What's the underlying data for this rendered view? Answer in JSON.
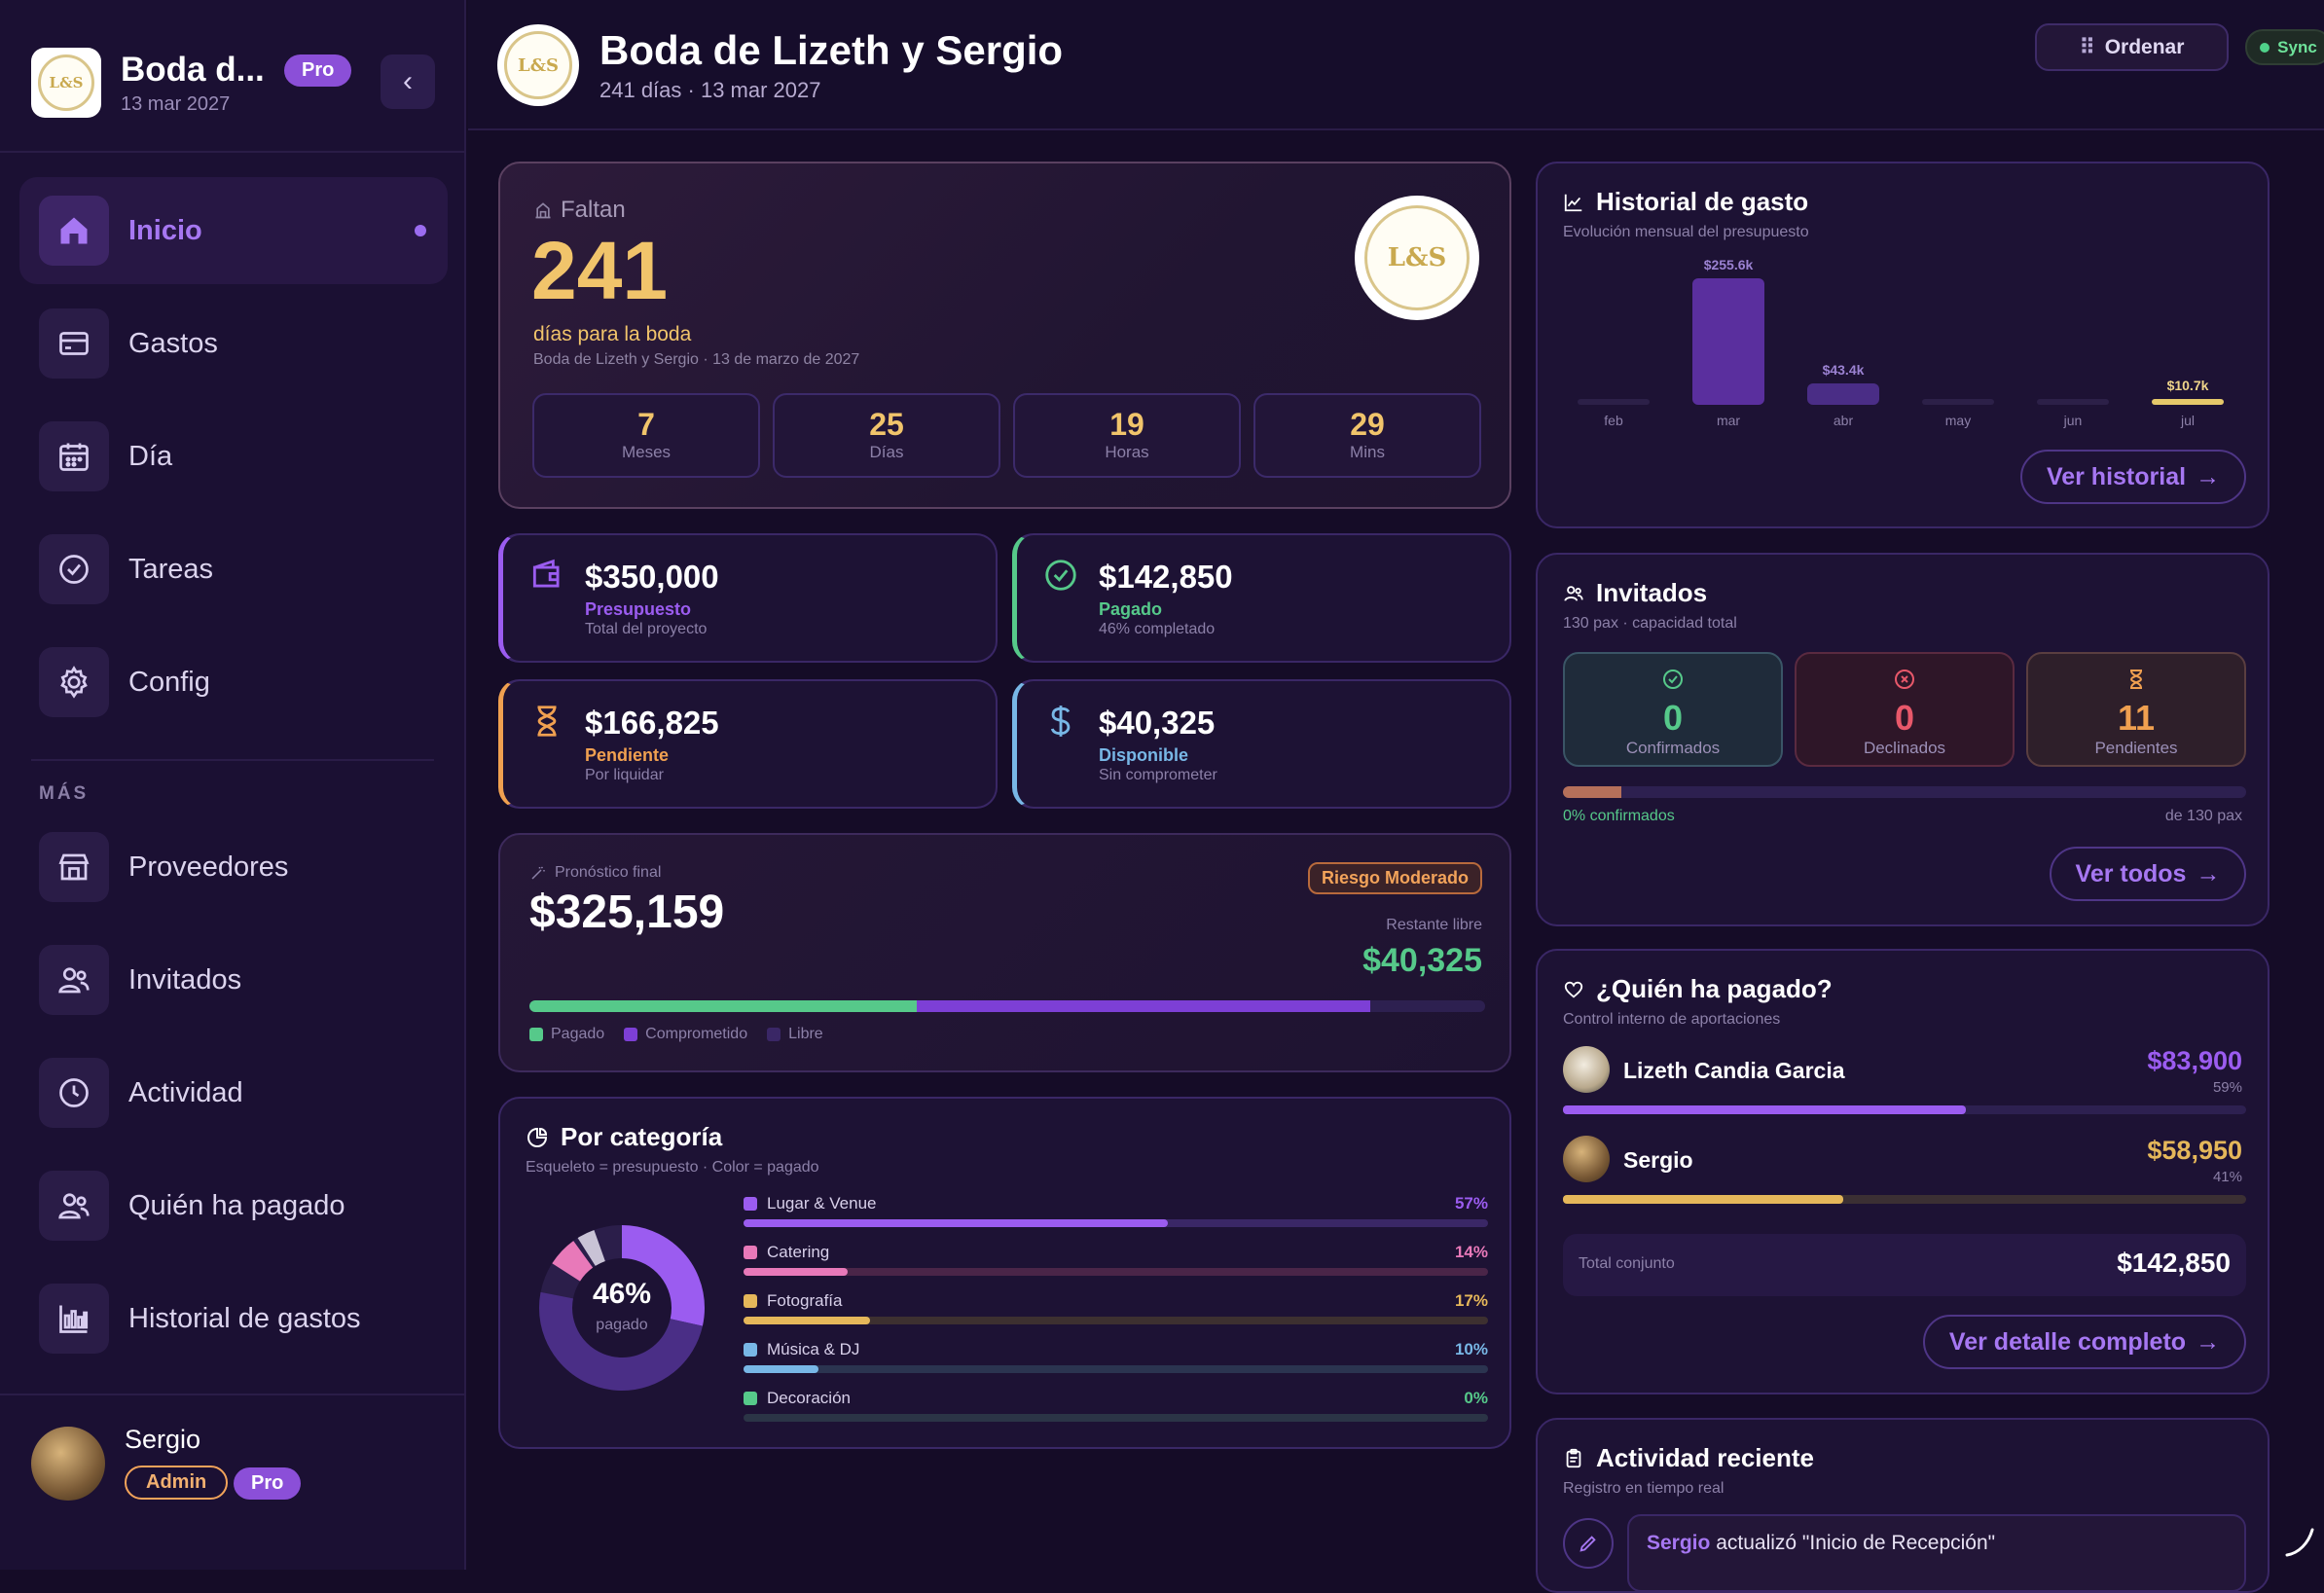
{
  "sidebar": {
    "title": "Boda d...",
    "badge": "Pro",
    "date": "13 mar 2027",
    "collapse_icon": "chevron-left-icon",
    "items": [
      {
        "label": "Inicio",
        "icon": "home-icon",
        "active": true
      },
      {
        "label": "Gastos",
        "icon": "credit-card-icon"
      },
      {
        "label": "Día",
        "icon": "calendar-icon"
      },
      {
        "label": "Tareas",
        "icon": "check-circle-icon"
      },
      {
        "label": "Config",
        "icon": "gear-icon"
      }
    ],
    "more_label": "MÁS",
    "more_items": [
      {
        "label": "Proveedores",
        "icon": "store-icon"
      },
      {
        "label": "Invitados",
        "icon": "users-icon"
      },
      {
        "label": "Actividad",
        "icon": "clock-icon"
      },
      {
        "label": "Quién ha pagado",
        "icon": "users-icon"
      },
      {
        "label": "Historial de gastos",
        "icon": "bar-chart-icon"
      }
    ],
    "user": {
      "name": "Sergio",
      "role": "Admin",
      "plan": "Pro"
    }
  },
  "header": {
    "title": "Boda de Lizeth y Sergio",
    "subtitle": "241 días · 13 mar 2027",
    "order_label": "Ordenar",
    "sync_label": "Sync"
  },
  "hero": {
    "faltan": "Faltan",
    "number": "241",
    "caption": "días para la boda",
    "desc": "Boda de Lizeth y Sergio · 13 de marzo de 2027",
    "seal_text": "L&S",
    "countdown": [
      {
        "value": "7",
        "label": "Meses"
      },
      {
        "value": "25",
        "label": "Días"
      },
      {
        "value": "19",
        "label": "Horas"
      },
      {
        "value": "29",
        "label": "Mins"
      }
    ]
  },
  "stats": [
    {
      "value": "$350,000",
      "label": "Presupuesto",
      "sub": "Total del proyecto",
      "color": "#9b5cf0",
      "icon": "wallet-icon"
    },
    {
      "value": "$142,850",
      "label": "Pagado",
      "sub": "46% completado",
      "color": "#56c98a",
      "icon": "check-circle-icon"
    },
    {
      "value": "$166,825",
      "label": "Pendiente",
      "sub": "Por liquidar",
      "color": "#f0a050",
      "icon": "hourglass-icon"
    },
    {
      "value": "$40,325",
      "label": "Disponible",
      "sub": "Sin comprometer",
      "color": "#78b7e6",
      "icon": "dollar-icon"
    }
  ],
  "forecast": {
    "label": "Pronóstico final",
    "value": "$325,159",
    "risk": "Riesgo Moderado",
    "free_label": "Restante libre",
    "free_value": "$40,325",
    "paid_fraction": 0.405,
    "committed_fraction": 0.475,
    "legend": [
      "Pagado",
      "Comprometido",
      "Libre"
    ]
  },
  "categories": {
    "title": "Por categoría",
    "subtitle": "Esqueleto = presupuesto · Color = pagado",
    "donut_value": "46%",
    "donut_label": "pagado",
    "items": [
      {
        "name": "Lugar & Venue",
        "pct": "57%",
        "fill": 0.57,
        "color": "#9b5cf0"
      },
      {
        "name": "Catering",
        "pct": "14%",
        "fill": 0.14,
        "color": "#e879b9"
      },
      {
        "name": "Fotografía",
        "pct": "17%",
        "fill": 0.17,
        "color": "#e5b75a"
      },
      {
        "name": "Música & DJ",
        "pct": "10%",
        "fill": 0.1,
        "color": "#78b7e6"
      },
      {
        "name": "Decoración",
        "pct": "0%",
        "fill": 0.0,
        "color": "#56c98a"
      }
    ]
  },
  "history": {
    "title": "Historial de gasto",
    "subtitle": "Evolución mensual del presupuesto",
    "button": "Ver historial",
    "chart_data": {
      "type": "bar",
      "categories": [
        "feb",
        "mar",
        "abr",
        "may",
        "jun",
        "jul"
      ],
      "values": [
        0,
        255.6,
        43.4,
        0,
        0,
        10.7
      ],
      "labels": [
        "",
        "$255.6k",
        "$43.4k",
        "",
        "",
        "$10.7k"
      ]
    }
  },
  "guests": {
    "title": "Invitados",
    "subtitle": "130 pax · capacidad total",
    "boxes": [
      {
        "value": "0",
        "label": "Confirmados",
        "color": "#56c98a",
        "icon": "check-circle-icon"
      },
      {
        "value": "0",
        "label": "Declinados",
        "color": "#e8586a",
        "icon": "x-circle-icon"
      },
      {
        "value": "11",
        "label": "Pendientes",
        "color": "#f0a050",
        "icon": "hourglass-icon"
      }
    ],
    "progress_fraction": 0.085,
    "progress_label": "0% confirmados",
    "total_label": "de 130 pax",
    "button": "Ver todos"
  },
  "payers": {
    "title": "¿Quién ha pagado?",
    "subtitle": "Control interno de aportaciones",
    "people": [
      {
        "name": "Lizeth Candia Garcia",
        "amount": "$83,900",
        "pct": "59%",
        "fraction": 0.59,
        "color": "#9b5cf0"
      },
      {
        "name": "Sergio",
        "amount": "$58,950",
        "pct": "41%",
        "fraction": 0.41,
        "color": "#e5b75a"
      }
    ],
    "total_label": "Total conjunto",
    "total_value": "$142,850",
    "button": "Ver detalle completo"
  },
  "activity": {
    "title": "Actividad reciente",
    "subtitle": "Registro en tiempo real",
    "entry_user": "Sergio",
    "entry_text": "actualizó \"Inicio de Recepción\""
  }
}
